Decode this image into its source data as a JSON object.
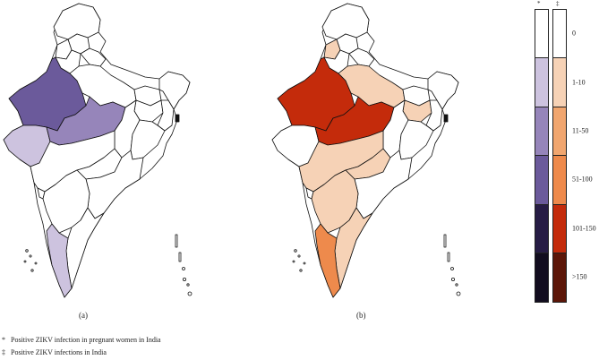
{
  "panels": [
    {
      "id": "a",
      "label": "(a)",
      "regions": [
        {
          "name": "Rajasthan",
          "fill": "#6b5a9b"
        },
        {
          "name": "Madhya Pradesh",
          "fill": "#9685ba"
        },
        {
          "name": "Gujarat",
          "fill": "#cdc3df"
        },
        {
          "name": "Kerala",
          "fill": "#cdc3df"
        }
      ]
    },
    {
      "id": "b",
      "label": "(b)",
      "regions": [
        {
          "name": "Rajasthan",
          "fill": "#c42b0b"
        },
        {
          "name": "Madhya Pradesh",
          "fill": "#c42b0b"
        },
        {
          "name": "Uttar Pradesh",
          "fill": "#f6d2b6"
        },
        {
          "name": "Punjab",
          "fill": "#f6d2b6"
        },
        {
          "name": "Jharkhand",
          "fill": "#f6d2b6"
        },
        {
          "name": "Maharashtra",
          "fill": "#f6d2b6"
        },
        {
          "name": "Telangana",
          "fill": "#f6d2b6"
        },
        {
          "name": "Karnataka",
          "fill": "#f6d2b6"
        },
        {
          "name": "Tamil Nadu",
          "fill": "#f6d2b6"
        },
        {
          "name": "Kerala",
          "fill": "#ee8a4c"
        }
      ]
    }
  ],
  "legend": {
    "symbol_a": "*",
    "symbol_b": "‡",
    "classes": [
      "0",
      "1-10",
      "11-50",
      "51-100",
      "101-150",
      ">150"
    ],
    "colors_a": [
      "#ffffff",
      "#cdc3df",
      "#9685ba",
      "#6b5a9b",
      "#271c45",
      "#120d1f"
    ],
    "colors_b": [
      "#ffffff",
      "#f6d2b6",
      "#f1a66f",
      "#ee8a4c",
      "#c42b0b",
      "#5c1608"
    ]
  },
  "footnotes": [
    {
      "symbol": "*",
      "text": "Positive ZIKV infection in pregnant women in India"
    },
    {
      "symbol": "‡",
      "text": "Positive ZIKV infections in India"
    }
  ]
}
